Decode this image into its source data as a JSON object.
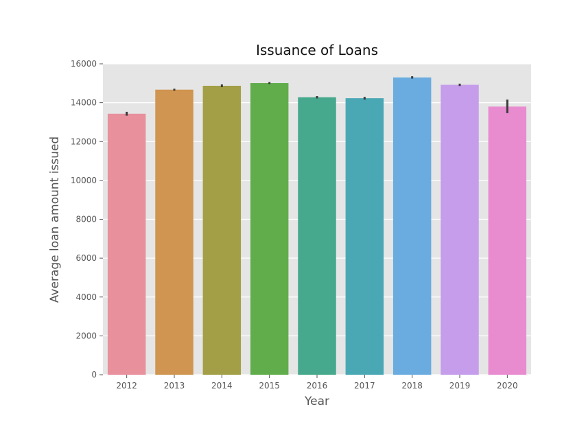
{
  "chart_data": {
    "type": "bar",
    "title": "Issuance of Loans",
    "xlabel": "Year",
    "ylabel": "Average loan amount issued",
    "categories": [
      "2012",
      "2013",
      "2014",
      "2015",
      "2016",
      "2017",
      "2018",
      "2019",
      "2020"
    ],
    "values": [
      13430,
      14670,
      14870,
      15010,
      14280,
      14230,
      15300,
      14920,
      13800
    ],
    "error_low": [
      13330,
      14620,
      14800,
      14960,
      14220,
      14160,
      15240,
      14860,
      13460
    ],
    "error_high": [
      13530,
      14720,
      14940,
      15060,
      14340,
      14300,
      15360,
      14980,
      14160
    ],
    "colors": [
      "#e8909c",
      "#d09550",
      "#a39f46",
      "#61ad4b",
      "#46a88c",
      "#4aa8b5",
      "#6aace0",
      "#c59deb",
      "#e88ccf"
    ],
    "ylim": [
      0,
      16000
    ],
    "yticks": [
      0,
      2000,
      4000,
      6000,
      8000,
      10000,
      12000,
      14000,
      16000
    ],
    "ytick_labels": [
      "0",
      "2000",
      "4000",
      "6000",
      "8000",
      "10000",
      "12000",
      "14000",
      "16000"
    ],
    "grid": true,
    "background": "#e5e5e5",
    "error_color": "#3a3a3a"
  }
}
